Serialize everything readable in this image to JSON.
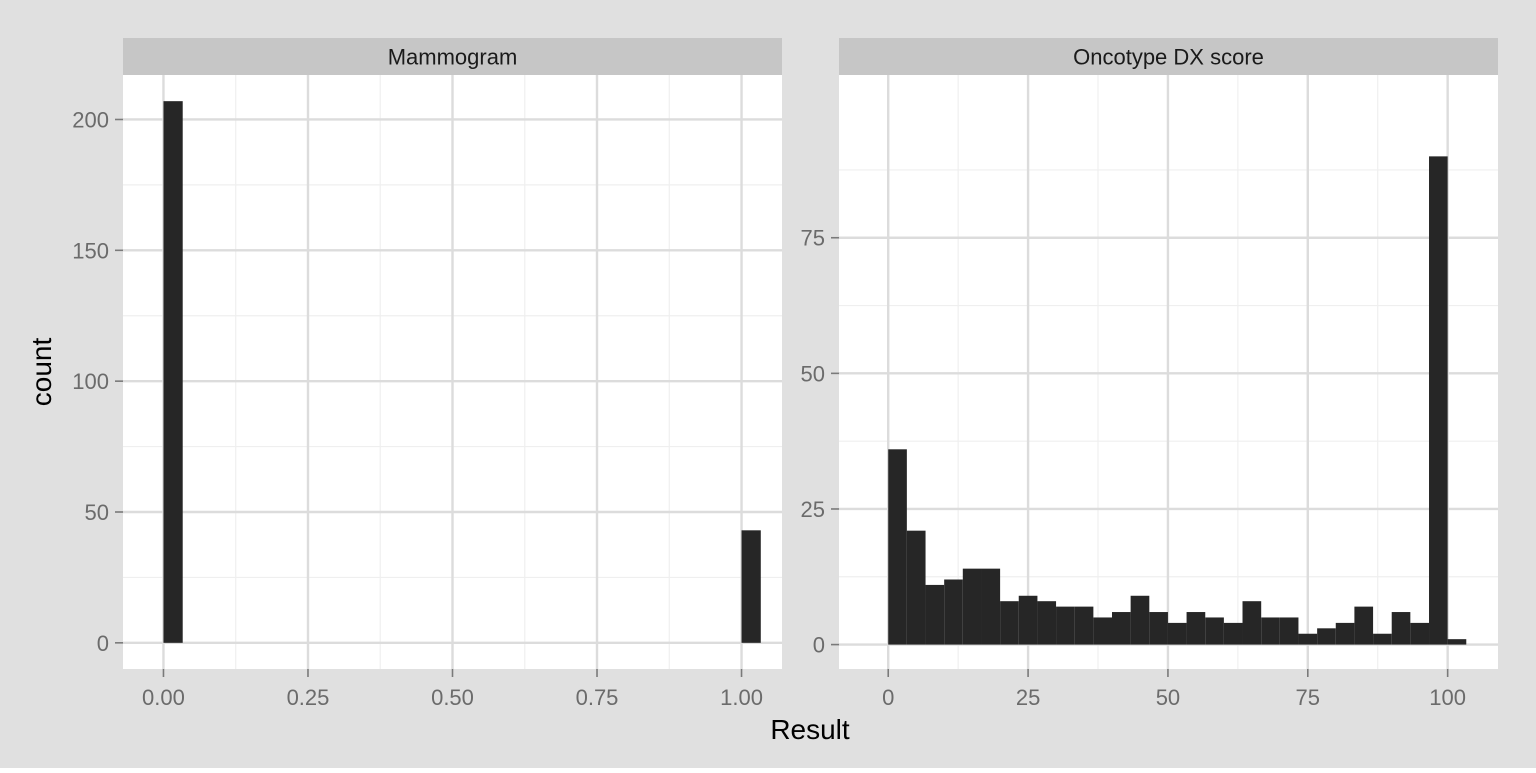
{
  "figure": {
    "xlabel": "Result",
    "ylabel": "count",
    "colors": {
      "outer_background": "#e0e0e0",
      "panel_background": "#ffffff",
      "strip_background": "#c6c6c6",
      "grid_major": "#dcdcdc",
      "grid_minor": "#efefef",
      "bar_fill": "#262626",
      "tick_text": "#6b6b6b",
      "label_text": "#000000"
    }
  },
  "chart_data": [
    {
      "type": "bar",
      "title": "Mammogram",
      "xlim": [
        -0.07,
        1.07
      ],
      "ylim": [
        -10,
        217
      ],
      "x_ticks": [
        0,
        0.25,
        0.5,
        0.75,
        1
      ],
      "x_tick_labels": [
        "0.00",
        "0.25",
        "0.50",
        "0.75",
        "1.00"
      ],
      "y_ticks": [
        0,
        50,
        100,
        150,
        200
      ],
      "y_tick_labels": [
        "0",
        "50",
        "100",
        "150",
        "200"
      ],
      "grid": true,
      "bin_width": 0.0333,
      "bins": [
        {
          "x0": 0.0,
          "x1": 0.0333,
          "count": 207
        },
        {
          "x0": 1.0,
          "x1": 1.0333,
          "count": 43
        }
      ]
    },
    {
      "type": "bar",
      "title": "Oncotype DX score",
      "xlim": [
        -8.8,
        109
      ],
      "ylim": [
        -4.5,
        105
      ],
      "x_ticks": [
        0,
        25,
        50,
        75,
        100
      ],
      "x_tick_labels": [
        "0",
        "25",
        "50",
        "75",
        "100"
      ],
      "y_ticks": [
        0,
        25,
        50,
        75
      ],
      "y_tick_labels": [
        "0",
        "25",
        "50",
        "75"
      ],
      "grid": true,
      "bin_width": 3.33,
      "bins": [
        {
          "x0": 0.0,
          "x1": 3.33,
          "count": 36
        },
        {
          "x0": 3.33,
          "x1": 6.67,
          "count": 21
        },
        {
          "x0": 6.67,
          "x1": 10.0,
          "count": 11
        },
        {
          "x0": 10.0,
          "x1": 13.33,
          "count": 12
        },
        {
          "x0": 13.33,
          "x1": 16.67,
          "count": 14
        },
        {
          "x0": 16.67,
          "x1": 20.0,
          "count": 14
        },
        {
          "x0": 20.0,
          "x1": 23.33,
          "count": 8
        },
        {
          "x0": 23.33,
          "x1": 26.67,
          "count": 9
        },
        {
          "x0": 26.67,
          "x1": 30.0,
          "count": 8
        },
        {
          "x0": 30.0,
          "x1": 33.33,
          "count": 7
        },
        {
          "x0": 33.33,
          "x1": 36.67,
          "count": 7
        },
        {
          "x0": 36.67,
          "x1": 40.0,
          "count": 5
        },
        {
          "x0": 40.0,
          "x1": 43.33,
          "count": 6
        },
        {
          "x0": 43.33,
          "x1": 46.67,
          "count": 9
        },
        {
          "x0": 46.67,
          "x1": 50.0,
          "count": 6
        },
        {
          "x0": 50.0,
          "x1": 53.33,
          "count": 4
        },
        {
          "x0": 53.33,
          "x1": 56.67,
          "count": 6
        },
        {
          "x0": 56.67,
          "x1": 60.0,
          "count": 5
        },
        {
          "x0": 60.0,
          "x1": 63.33,
          "count": 4
        },
        {
          "x0": 63.33,
          "x1": 66.67,
          "count": 8
        },
        {
          "x0": 66.67,
          "x1": 70.0,
          "count": 5
        },
        {
          "x0": 70.0,
          "x1": 73.33,
          "count": 5
        },
        {
          "x0": 73.33,
          "x1": 76.67,
          "count": 2
        },
        {
          "x0": 76.67,
          "x1": 80.0,
          "count": 3
        },
        {
          "x0": 80.0,
          "x1": 83.33,
          "count": 4
        },
        {
          "x0": 83.33,
          "x1": 86.67,
          "count": 7
        },
        {
          "x0": 86.67,
          "x1": 90.0,
          "count": 2
        },
        {
          "x0": 90.0,
          "x1": 93.33,
          "count": 6
        },
        {
          "x0": 93.33,
          "x1": 96.67,
          "count": 4
        },
        {
          "x0": 96.67,
          "x1": 100.0,
          "count": 90
        },
        {
          "x0": 100.0,
          "x1": 103.33,
          "count": 1
        }
      ]
    }
  ]
}
